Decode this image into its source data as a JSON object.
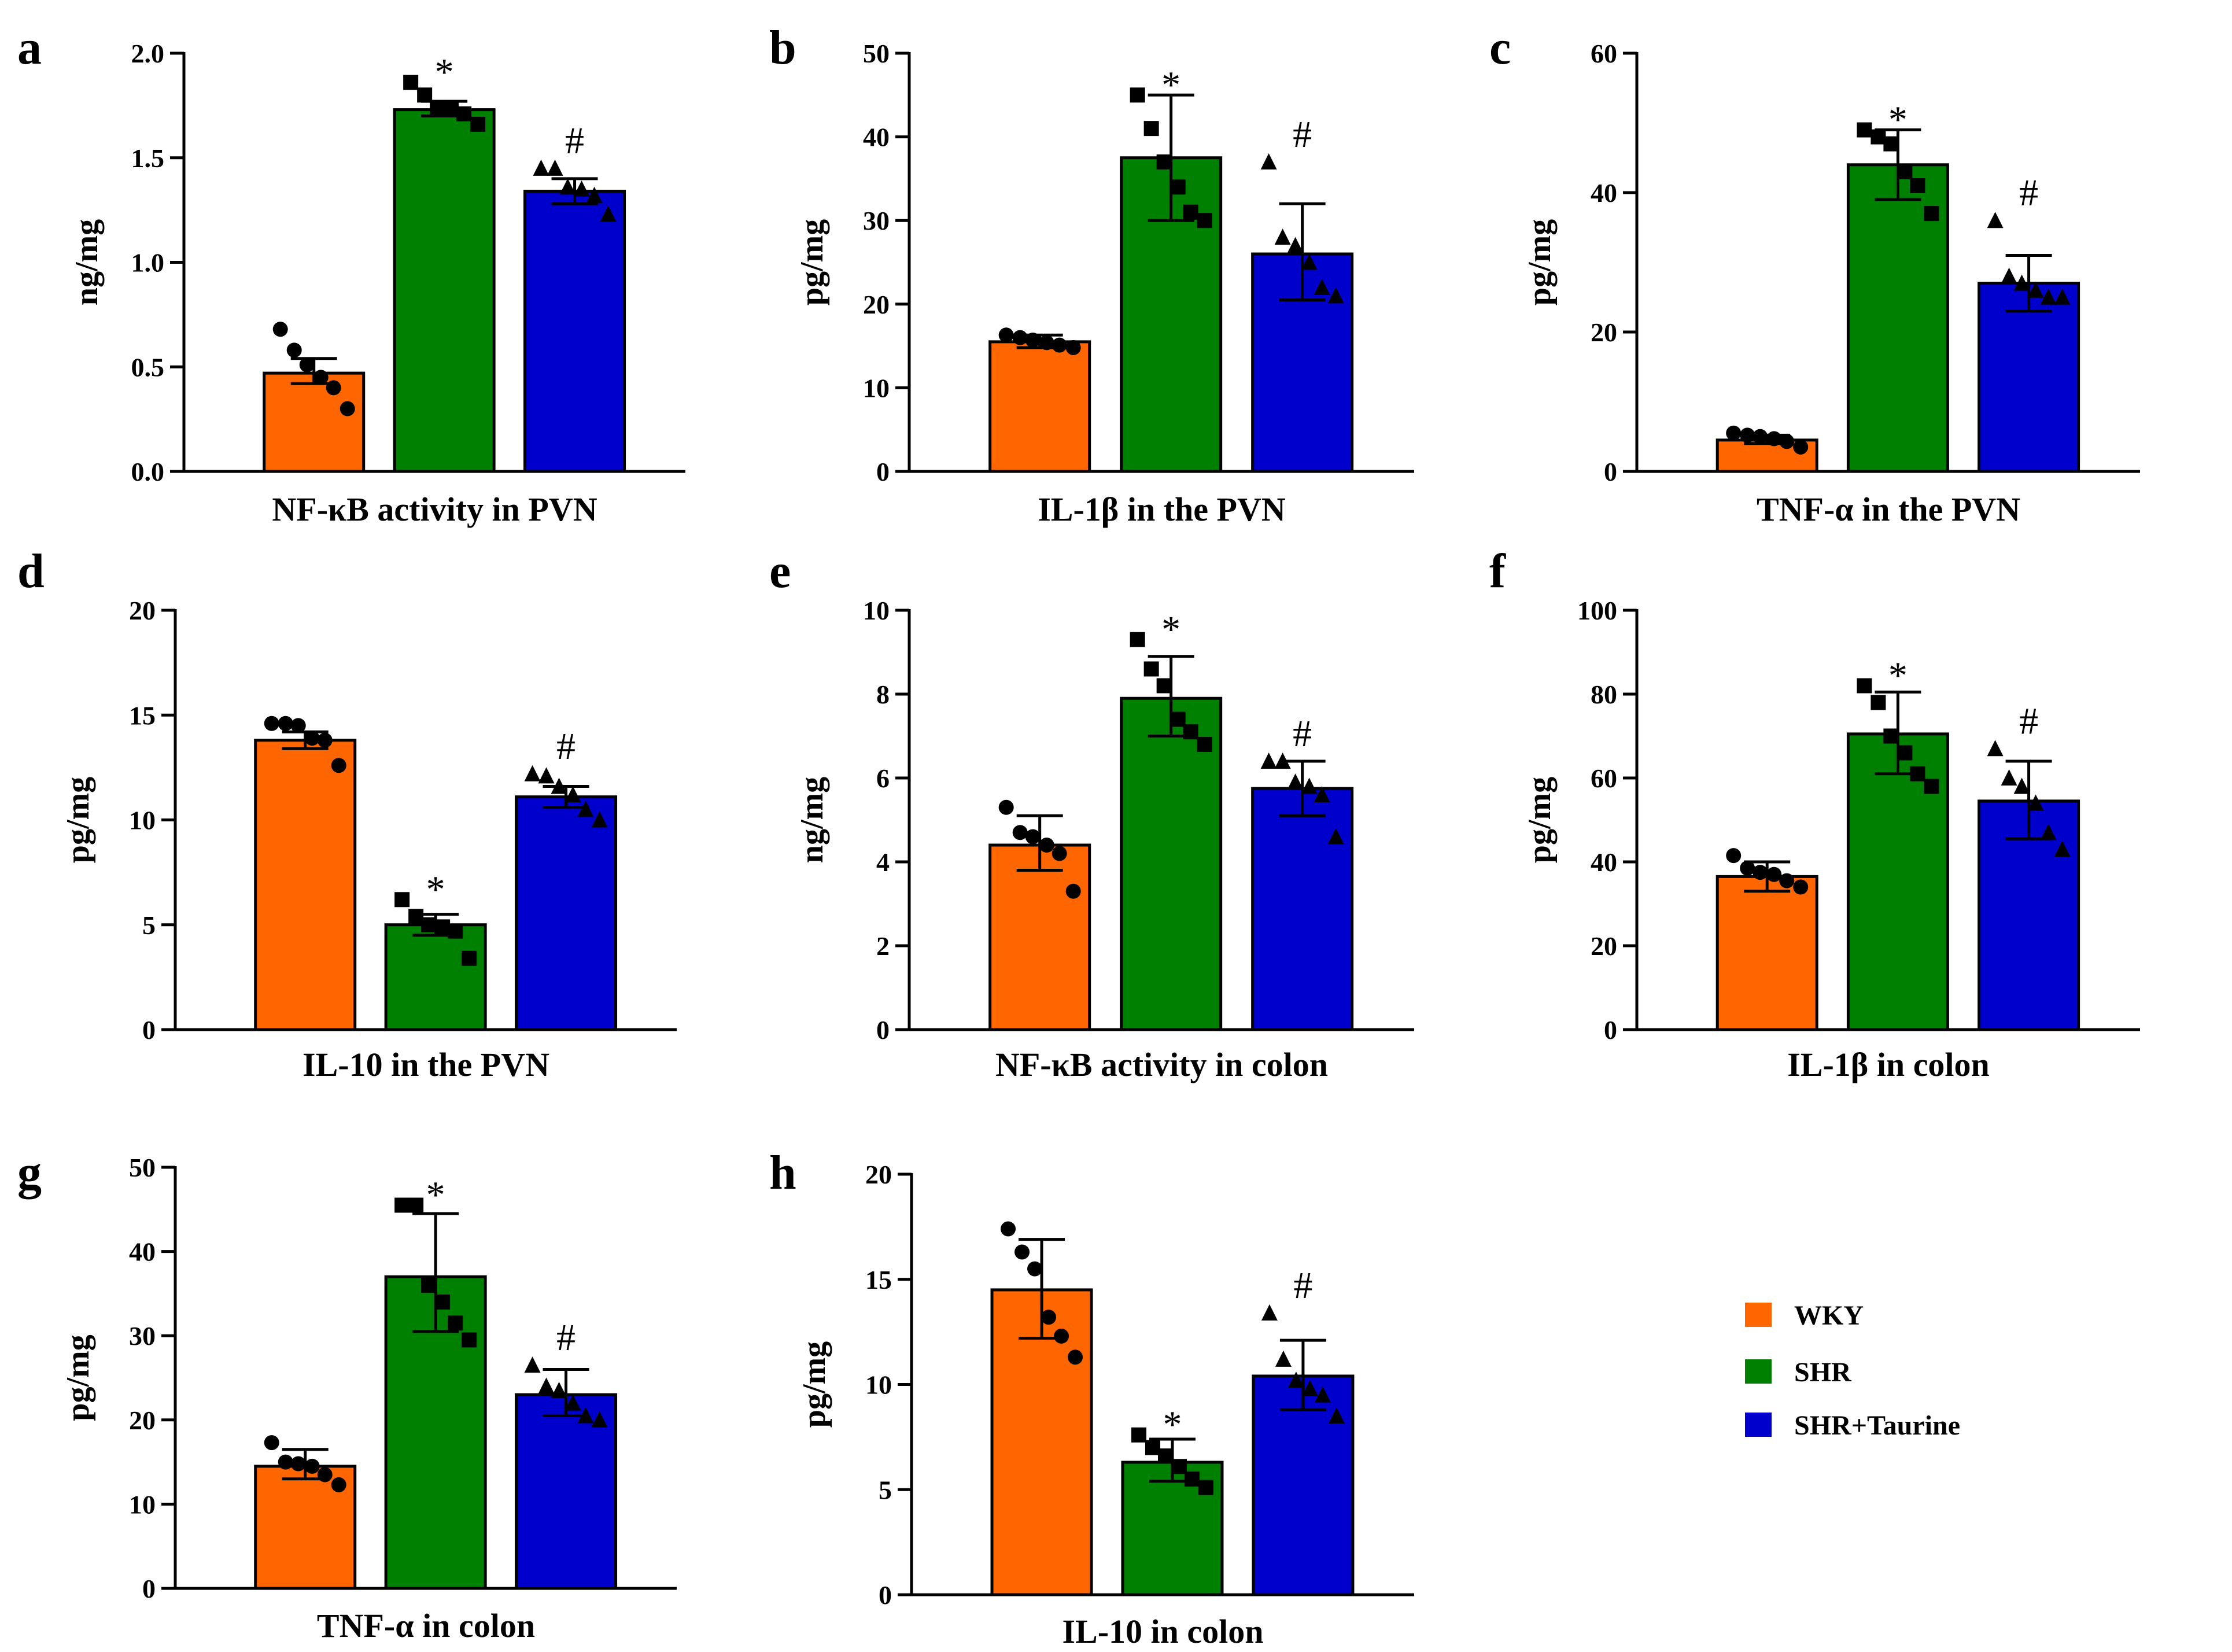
{
  "colors": {
    "WKY": "#ff6600",
    "SHR": "#008000",
    "SHR+Taurine": "#0000cc",
    "axis": "#000000"
  },
  "legend": {
    "items": [
      {
        "label": "WKY",
        "color": "#ff6600"
      },
      {
        "label": "SHR",
        "color": "#008000"
      },
      {
        "label": "SHR+Taurine",
        "color": "#0000cc"
      }
    ]
  },
  "chart_data": [
    {
      "type": "bar",
      "panel": "a",
      "title": "",
      "xlabel": "NF-κB activity in PVN",
      "ylabel": "ng/mg",
      "ylim": [
        0,
        2.0
      ],
      "yticks": [
        0.0,
        0.5,
        1.0,
        1.5,
        2.0
      ],
      "ytick_labels": [
        "0.0",
        "0.5",
        "1.0",
        "1.5",
        "2.0"
      ],
      "categories": [
        "WKY",
        "SHR",
        "SHR+Taurine"
      ],
      "values": [
        0.47,
        1.73,
        1.34
      ],
      "errors_up": [
        0.54,
        1.77,
        1.4
      ],
      "errors_down": [
        0.42,
        1.7,
        1.28
      ],
      "points": [
        [
          0.68,
          0.58,
          0.51,
          0.45,
          0.4,
          0.3
        ],
        [
          1.86,
          1.8,
          1.74,
          1.73,
          1.71,
          1.66
        ],
        [
          1.45,
          1.45,
          1.36,
          1.35,
          1.32,
          1.23
        ]
      ],
      "significance": [
        "",
        "*",
        "#"
      ],
      "marker_shapes": [
        "circle",
        "square",
        "triangle"
      ]
    },
    {
      "type": "bar",
      "panel": "b",
      "title": "",
      "xlabel": "IL-1β in the PVN",
      "ylabel": "pg/mg",
      "ylim": [
        0,
        50
      ],
      "yticks": [
        0,
        10,
        20,
        30,
        40,
        50
      ],
      "ytick_labels": [
        "0",
        "10",
        "20",
        "30",
        "40",
        "50"
      ],
      "categories": [
        "WKY",
        "SHR",
        "SHR+Taurine"
      ],
      "values": [
        15.5,
        37.5,
        26
      ],
      "errors_up": [
        16.3,
        45,
        32
      ],
      "errors_down": [
        14.8,
        30,
        20.5
      ],
      "points": [
        [
          16.3,
          16.0,
          15.7,
          15.4,
          15.1,
          14.8
        ],
        [
          45,
          41,
          37,
          34,
          31,
          30
        ],
        [
          37,
          28,
          27,
          25,
          22,
          21
        ]
      ],
      "significance": [
        "",
        "*",
        "#"
      ],
      "marker_shapes": [
        "circle",
        "square",
        "triangle"
      ]
    },
    {
      "type": "bar",
      "panel": "c",
      "title": "",
      "xlabel": "TNF-α in the PVN",
      "ylabel": "pg/mg",
      "ylim": [
        0,
        60
      ],
      "yticks": [
        0,
        20,
        40,
        60
      ],
      "ytick_labels": [
        "0",
        "20",
        "40",
        "60"
      ],
      "categories": [
        "WKY",
        "SHR",
        "SHR+Taurine"
      ],
      "values": [
        4.5,
        44,
        27
      ],
      "errors_up": [
        5.2,
        49,
        31
      ],
      "errors_down": [
        4.0,
        39,
        23
      ],
      "points": [
        [
          5.5,
          5.2,
          5.0,
          4.7,
          4.3,
          3.5
        ],
        [
          49,
          48,
          47,
          43,
          41,
          37
        ],
        [
          36,
          28,
          27,
          26,
          25,
          25
        ]
      ],
      "significance": [
        "",
        "*",
        "#"
      ],
      "marker_shapes": [
        "circle",
        "square",
        "triangle"
      ]
    },
    {
      "type": "bar",
      "panel": "d",
      "title": "",
      "xlabel": "IL-10 in the PVN",
      "ylabel": "pg/mg",
      "ylim": [
        0,
        20
      ],
      "yticks": [
        0,
        5,
        10,
        15,
        20
      ],
      "ytick_labels": [
        "0",
        "5",
        "10",
        "15",
        "20"
      ],
      "categories": [
        "WKY",
        "SHR",
        "SHR+Taurine"
      ],
      "values": [
        13.8,
        5,
        11.1
      ],
      "errors_up": [
        14.2,
        5.5,
        11.6
      ],
      "errors_down": [
        13.4,
        4.5,
        10.6
      ],
      "points": [
        [
          14.6,
          14.6,
          14.5,
          13.9,
          13.8,
          12.6
        ],
        [
          6.2,
          5.4,
          5.0,
          4.9,
          4.7,
          3.4
        ],
        [
          12.2,
          12.1,
          11.6,
          11.2,
          10.5,
          10.0
        ]
      ],
      "significance": [
        "",
        "*",
        "#"
      ],
      "marker_shapes": [
        "circle",
        "square",
        "triangle"
      ]
    },
    {
      "type": "bar",
      "panel": "e",
      "title": "",
      "xlabel": "NF-κB activity in colon",
      "ylabel": "ng/mg",
      "ylim": [
        0,
        10
      ],
      "yticks": [
        0,
        2,
        4,
        6,
        8,
        10
      ],
      "ytick_labels": [
        "0",
        "2",
        "4",
        "6",
        "8",
        "10"
      ],
      "categories": [
        "WKY",
        "SHR",
        "SHR+Taurine"
      ],
      "values": [
        4.4,
        7.9,
        5.75
      ],
      "errors_up": [
        5.1,
        8.9,
        6.4
      ],
      "errors_down": [
        3.8,
        7.0,
        5.1
      ],
      "points": [
        [
          5.3,
          4.7,
          4.6,
          4.4,
          4.2,
          3.3
        ],
        [
          9.3,
          8.6,
          8.2,
          7.4,
          7.1,
          6.8
        ],
        [
          6.4,
          6.4,
          5.9,
          5.8,
          5.6,
          4.6
        ]
      ],
      "significance": [
        "",
        "*",
        "#"
      ],
      "marker_shapes": [
        "circle",
        "square",
        "triangle"
      ]
    },
    {
      "type": "bar",
      "panel": "f",
      "title": "",
      "xlabel": "IL-1β in colon",
      "ylabel": "pg/mg",
      "ylim": [
        0,
        100
      ],
      "yticks": [
        0,
        20,
        40,
        60,
        80,
        100
      ],
      "ytick_labels": [
        "0",
        "20",
        "40",
        "60",
        "80",
        "100"
      ],
      "categories": [
        "WKY",
        "SHR",
        "SHR+Taurine"
      ],
      "values": [
        36.5,
        70.5,
        54.5
      ],
      "errors_up": [
        40,
        80.5,
        64
      ],
      "errors_down": [
        33,
        61,
        45.5
      ],
      "points": [
        [
          41.5,
          38.5,
          37.5,
          37.0,
          35.5,
          34.0
        ],
        [
          82,
          78,
          70,
          66,
          61,
          58
        ],
        [
          67,
          60,
          58,
          54,
          47,
          43
        ]
      ],
      "significance": [
        "",
        "*",
        "#"
      ],
      "marker_shapes": [
        "circle",
        "square",
        "triangle"
      ]
    },
    {
      "type": "bar",
      "panel": "g",
      "title": "",
      "xlabel": "TNF-α in colon",
      "ylabel": "pg/mg",
      "ylim": [
        0,
        50
      ],
      "yticks": [
        0,
        10,
        20,
        30,
        40,
        50
      ],
      "ytick_labels": [
        "0",
        "10",
        "20",
        "30",
        "40",
        "50"
      ],
      "categories": [
        "WKY",
        "SHR",
        "SHR+Taurine"
      ],
      "values": [
        14.5,
        37,
        23
      ],
      "errors_up": [
        16.5,
        44.5,
        26
      ],
      "errors_down": [
        13,
        30.5,
        20.5
      ],
      "points": [
        [
          17.3,
          15.0,
          14.8,
          14.5,
          13.5,
          12.3
        ],
        [
          45.5,
          45.5,
          36,
          34,
          31.5,
          29.5
        ],
        [
          26.5,
          24,
          23.5,
          22,
          20.5,
          20
        ]
      ],
      "significance": [
        "",
        "*",
        "#"
      ],
      "marker_shapes": [
        "circle",
        "square",
        "triangle"
      ]
    },
    {
      "type": "bar",
      "panel": "h",
      "title": "",
      "xlabel": "IL-10 in colon",
      "ylabel": "pg/mg",
      "ylim": [
        0,
        20
      ],
      "yticks": [
        0,
        5,
        10,
        15,
        20
      ],
      "ytick_labels": [
        "0",
        "5",
        "10",
        "15",
        "20"
      ],
      "categories": [
        "WKY",
        "SHR",
        "SHR+Taurine"
      ],
      "values": [
        14.5,
        6.3,
        10.4
      ],
      "errors_up": [
        16.9,
        7.4,
        12.1
      ],
      "errors_down": [
        12.2,
        5.4,
        8.8
      ],
      "points": [
        [
          17.4,
          16.3,
          15.5,
          13.2,
          12.3,
          11.3
        ],
        [
          7.6,
          7.0,
          6.6,
          6.1,
          5.5,
          5.1
        ],
        [
          13.4,
          11.2,
          10.2,
          9.8,
          9.5,
          8.5
        ]
      ],
      "significance": [
        "",
        "*",
        "#"
      ],
      "marker_shapes": [
        "circle",
        "square",
        "triangle"
      ]
    }
  ]
}
